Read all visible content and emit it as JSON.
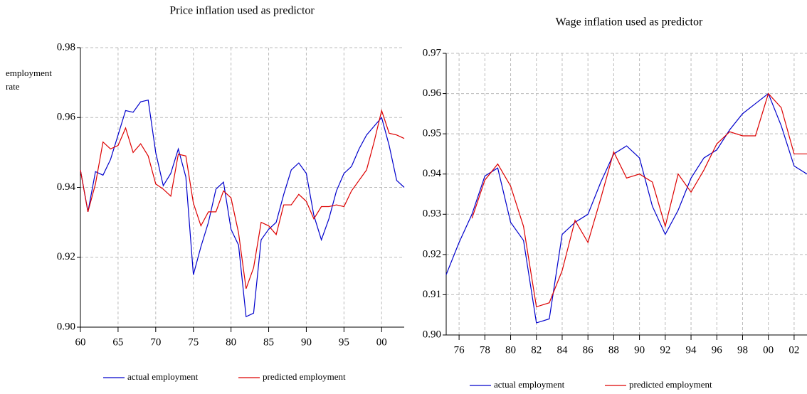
{
  "chart_data": [
    {
      "type": "line",
      "title": "Price inflation used as predictor",
      "y_label": [
        "employment",
        "rate"
      ],
      "x": [
        1960,
        1961,
        1962,
        1963,
        1964,
        1965,
        1966,
        1967,
        1968,
        1969,
        1970,
        1971,
        1972,
        1973,
        1974,
        1975,
        1976,
        1977,
        1978,
        1979,
        1980,
        1981,
        1982,
        1983,
        1984,
        1985,
        1986,
        1987,
        1988,
        1989,
        1990,
        1991,
        1992,
        1993,
        1994,
        1995,
        1996,
        1997,
        1998,
        1999,
        2000,
        2001,
        2002,
        2003
      ],
      "series": [
        {
          "name": "actual employment",
          "color": "#0000cc",
          "values": [
            0.945,
            0.933,
            0.9445,
            0.9435,
            0.948,
            0.955,
            0.962,
            0.9615,
            0.9645,
            0.965,
            0.95,
            0.9405,
            0.944,
            0.951,
            0.943,
            0.915,
            0.923,
            0.93,
            0.9395,
            0.9415,
            0.928,
            0.9235,
            0.903,
            0.904,
            0.925,
            0.928,
            0.93,
            0.938,
            0.945,
            0.947,
            0.944,
            0.932,
            0.925,
            0.931,
            0.939,
            0.944,
            0.946,
            0.951,
            0.955,
            0.9575,
            0.96,
            0.952,
            0.942,
            0.94
          ]
        },
        {
          "name": "predicted employment",
          "color": "#dd0000",
          "values": [
            0.945,
            0.933,
            0.941,
            0.953,
            0.951,
            0.952,
            0.957,
            0.95,
            0.9525,
            0.949,
            0.941,
            0.9395,
            0.9375,
            0.9495,
            0.949,
            0.9355,
            0.929,
            0.933,
            0.933,
            0.939,
            0.937,
            0.927,
            0.911,
            0.917,
            0.93,
            0.929,
            0.9265,
            0.935,
            0.935,
            0.938,
            0.936,
            0.931,
            0.9345,
            0.9345,
            0.935,
            0.9345,
            0.939,
            0.942,
            0.945,
            0.953,
            0.962,
            0.9555,
            0.955,
            0.954
          ]
        }
      ],
      "xlim": [
        1960,
        2003
      ],
      "xticks": [
        {
          "value": 1960,
          "label": "60"
        },
        {
          "value": 1965,
          "label": "65"
        },
        {
          "value": 1970,
          "label": "70"
        },
        {
          "value": 1975,
          "label": "75"
        },
        {
          "value": 1980,
          "label": "80"
        },
        {
          "value": 1985,
          "label": "85"
        },
        {
          "value": 1990,
          "label": "90"
        },
        {
          "value": 1995,
          "label": "95"
        },
        {
          "value": 2000,
          "label": "00"
        }
      ],
      "ylim": [
        0.9,
        0.98
      ],
      "yticks": [
        {
          "value": 0.9,
          "label": "0.90"
        },
        0.92,
        0.94,
        0.96,
        0.98
      ],
      "grid": true,
      "legend": "bottom"
    },
    {
      "type": "line",
      "title": "Wage inflation used as predictor",
      "x": [
        1975,
        1976,
        1977,
        1978,
        1979,
        1980,
        1981,
        1982,
        1983,
        1984,
        1985,
        1986,
        1987,
        1988,
        1989,
        1990,
        1991,
        1992,
        1993,
        1994,
        1995,
        1996,
        1997,
        1998,
        1999,
        2000,
        2001,
        2002,
        2003
      ],
      "series": [
        {
          "name": "actual employment",
          "color": "#0000cc",
          "values": [
            0.915,
            0.923,
            0.93,
            0.9395,
            0.9415,
            0.928,
            0.9235,
            0.903,
            0.904,
            0.925,
            0.928,
            0.93,
            0.938,
            0.945,
            0.947,
            0.944,
            0.932,
            0.925,
            0.931,
            0.939,
            0.944,
            0.946,
            0.951,
            0.955,
            0.9575,
            0.96,
            0.952,
            0.942,
            0.94
          ]
        },
        {
          "name": "predicted employment",
          "color": "#dd0000",
          "values": [
            null,
            null,
            0.929,
            0.9385,
            0.9425,
            0.937,
            0.927,
            0.907,
            0.908,
            0.916,
            0.9285,
            0.923,
            0.934,
            0.9455,
            0.939,
            0.94,
            0.938,
            0.927,
            0.94,
            0.9355,
            0.941,
            0.9475,
            0.9505,
            0.9495,
            0.9495,
            0.96,
            0.9565,
            0.945,
            0.945
          ]
        }
      ],
      "xlim": [
        1975,
        2003
      ],
      "xticks": [
        {
          "value": 1976,
          "label": "76"
        },
        {
          "value": 1978,
          "label": "78"
        },
        {
          "value": 1980,
          "label": "80"
        },
        {
          "value": 1982,
          "label": "82"
        },
        {
          "value": 1984,
          "label": "84"
        },
        {
          "value": 1986,
          "label": "86"
        },
        {
          "value": 1988,
          "label": "88"
        },
        {
          "value": 1990,
          "label": "90"
        },
        {
          "value": 1992,
          "label": "92"
        },
        {
          "value": 1994,
          "label": "94"
        },
        {
          "value": 1996,
          "label": "96"
        },
        {
          "value": 1998,
          "label": "98"
        },
        {
          "value": 2000,
          "label": "00"
        },
        {
          "value": 2002,
          "label": "02"
        }
      ],
      "ylim": [
        0.9,
        0.97
      ],
      "yticks": [
        {
          "value": 0.9,
          "label": "0.90"
        },
        0.91,
        0.92,
        0.93,
        0.94,
        0.95,
        0.96,
        0.97
      ],
      "grid": true,
      "legend": "bottom"
    }
  ]
}
